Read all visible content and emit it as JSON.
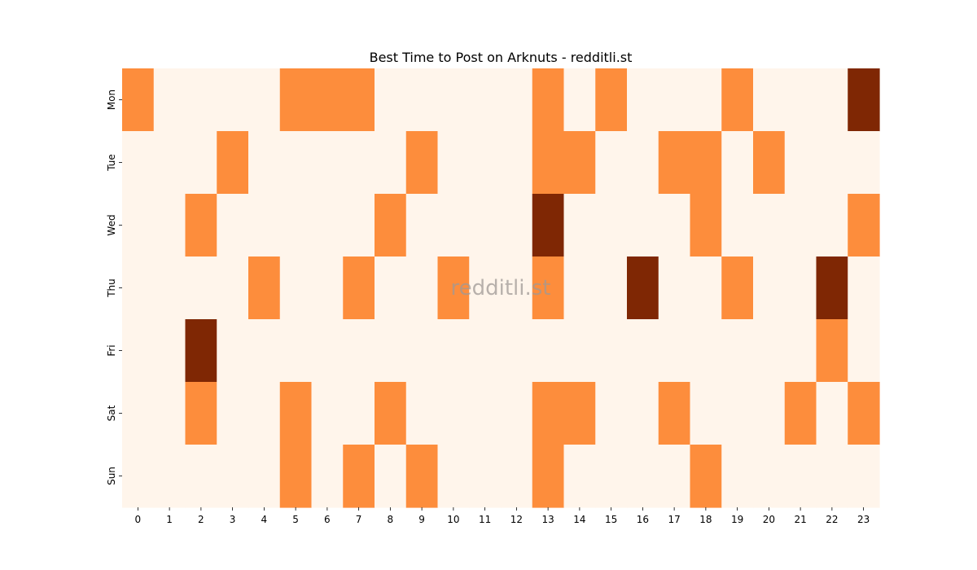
{
  "chart_data": {
    "type": "heatmap",
    "title": "Best Time to Post on Arknuts - redditli.st",
    "watermark": "redditli.st",
    "x_categories": [
      "0",
      "1",
      "2",
      "3",
      "4",
      "5",
      "6",
      "7",
      "8",
      "9",
      "10",
      "11",
      "12",
      "13",
      "14",
      "15",
      "16",
      "17",
      "18",
      "19",
      "20",
      "21",
      "22",
      "23"
    ],
    "y_categories": [
      "Mon",
      "Tue",
      "Wed",
      "Thu",
      "Fri",
      "Sat",
      "Sun"
    ],
    "values": [
      [
        1,
        0,
        0,
        0,
        0,
        1,
        1,
        1,
        0,
        0,
        0,
        0,
        0,
        1,
        0,
        1,
        0,
        0,
        0,
        1,
        0,
        0,
        0,
        2
      ],
      [
        0,
        0,
        0,
        1,
        0,
        0,
        0,
        0,
        0,
        1,
        0,
        0,
        0,
        1,
        1,
        0,
        0,
        1,
        1,
        0,
        1,
        0,
        0,
        0
      ],
      [
        0,
        0,
        1,
        0,
        0,
        0,
        0,
        0,
        1,
        0,
        0,
        0,
        0,
        2,
        0,
        0,
        0,
        0,
        1,
        0,
        0,
        0,
        0,
        1
      ],
      [
        0,
        0,
        0,
        0,
        1,
        0,
        0,
        1,
        0,
        0,
        1,
        0,
        0,
        1,
        0,
        0,
        2,
        0,
        0,
        1,
        0,
        0,
        2,
        0
      ],
      [
        0,
        0,
        2,
        0,
        0,
        0,
        0,
        0,
        0,
        0,
        0,
        0,
        0,
        0,
        0,
        0,
        0,
        0,
        0,
        0,
        0,
        0,
        1,
        0
      ],
      [
        0,
        0,
        1,
        0,
        0,
        1,
        0,
        0,
        1,
        0,
        0,
        0,
        0,
        1,
        1,
        0,
        0,
        1,
        0,
        0,
        0,
        1,
        0,
        1
      ],
      [
        0,
        0,
        0,
        0,
        0,
        1,
        0,
        1,
        0,
        1,
        0,
        0,
        0,
        1,
        0,
        0,
        0,
        0,
        1,
        0,
        0,
        0,
        0,
        0
      ]
    ],
    "value_range": [
      0,
      2
    ],
    "colormap": [
      "#fff5eb",
      "#fd8d3c",
      "#7f2704"
    ],
    "legend": "none",
    "grid": false
  }
}
